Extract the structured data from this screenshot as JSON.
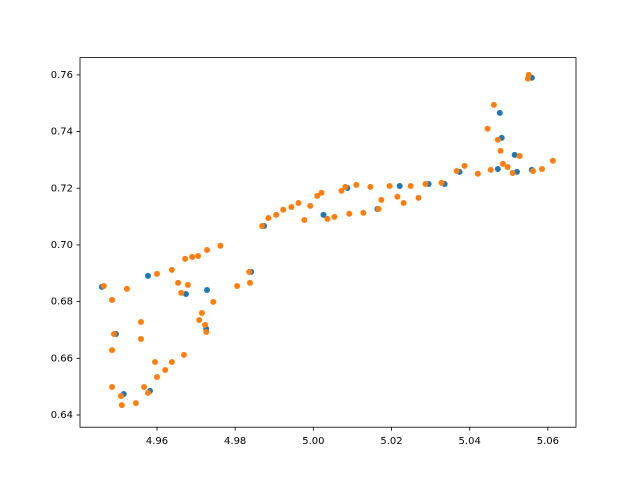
{
  "chart_data": {
    "type": "scatter",
    "xlim": [
      4.9403,
      5.0672
    ],
    "ylim": [
      0.6357,
      0.7661
    ],
    "xticks": [
      4.96,
      4.98,
      {
        "value": 5,
        "label": "5.00"
      },
      5.02,
      5.04,
      5.06
    ],
    "yticks": [
      0.64,
      0.66,
      0.68,
      {
        "value": 0.7,
        "label": "0.70"
      },
      0.72,
      0.74,
      0.76
    ],
    "series": [
      {
        "color": "#1f77b4",
        "x": [
          4.9577,
          4.9728,
          4.9841,
          4.9459,
          4.9495,
          5.0374,
          5.0482,
          5.0515,
          5.0559,
          5.0477,
          5.0521,
          5.0559,
          5.0472,
          4.9674,
          4.9726,
          4.9582,
          4.9515,
          4.9874,
          5.0026,
          5.0164,
          5.0221,
          5.0336,
          4.9485,
          5.0087,
          5.0295
        ],
        "values": [
          0.6891,
          0.6841,
          0.6905,
          0.6852,
          0.6686,
          0.7258,
          0.7378,
          0.7318,
          0.759,
          0.7466,
          0.7258,
          0.7265,
          0.7268,
          0.6827,
          0.6704,
          0.6485,
          0.6474,
          0.7067,
          0.7106,
          0.7127,
          0.7208,
          0.7215,
          0.6806,
          0.7201,
          0.7215
        ]
      },
      {
        "color": "#ff7f0e",
        "x": [
          4.9464,
          4.9485,
          4.949,
          4.9485,
          4.9485,
          4.9508,
          4.951,
          4.9523,
          4.9546,
          4.9559,
          4.9559,
          4.9567,
          4.9577,
          4.96,
          4.9595,
          4.96,
          4.9621,
          4.9638,
          4.9638,
          4.9654,
          4.9662,
          4.9669,
          4.9672,
          4.9679,
          4.969,
          4.9705,
          4.9708,
          4.9715,
          4.9723,
          4.9728,
          4.9726,
          4.9744,
          4.9762,
          4.9805,
          4.9836,
          4.9838,
          4.9869,
          4.9885,
          4.9905,
          4.9923,
          4.9944,
          4.9962,
          4.9977,
          4.9992,
          5.001,
          5.0021,
          5.0036,
          5.0054,
          5.0072,
          5.0082,
          5.0092,
          5.011,
          5.0128,
          5.0146,
          5.0167,
          5.0174,
          5.0195,
          5.0215,
          5.0231,
          5.0249,
          5.0269,
          5.0287,
          5.0328,
          5.0367,
          5.0387,
          5.0421,
          5.0446,
          5.0462,
          5.0472,
          5.0479,
          5.0485,
          5.0497,
          5.051,
          5.0528,
          5.0549,
          5.0551,
          5.0585,
          5.0613,
          5.0454,
          5.0562
        ],
        "values": [
          0.6855,
          0.6806,
          0.6686,
          0.6629,
          0.6499,
          0.6467,
          0.6435,
          0.6845,
          0.6442,
          0.6728,
          0.6668,
          0.6499,
          0.6478,
          0.6898,
          0.6587,
          0.6534,
          0.6559,
          0.6587,
          0.6912,
          0.6866,
          0.6831,
          0.6612,
          0.6951,
          0.6859,
          0.6958,
          0.6961,
          0.6735,
          0.676,
          0.6718,
          0.6982,
          0.6693,
          0.6799,
          0.6997,
          0.6855,
          0.6905,
          0.6866,
          0.7067,
          0.7095,
          0.7106,
          0.7124,
          0.7134,
          0.7148,
          0.7088,
          0.7138,
          0.7173,
          0.7184,
          0.7092,
          0.7099,
          0.7191,
          0.7205,
          0.711,
          0.7212,
          0.7113,
          0.7205,
          0.7127,
          0.7159,
          0.7208,
          0.717,
          0.7148,
          0.7208,
          0.7166,
          0.7215,
          0.7219,
          0.7261,
          0.7279,
          0.7251,
          0.741,
          0.7494,
          0.7371,
          0.7332,
          0.7286,
          0.7275,
          0.7254,
          0.7314,
          0.7587,
          0.76,
          0.7268,
          0.7297,
          0.7265,
          0.7261
        ]
      }
    ]
  }
}
